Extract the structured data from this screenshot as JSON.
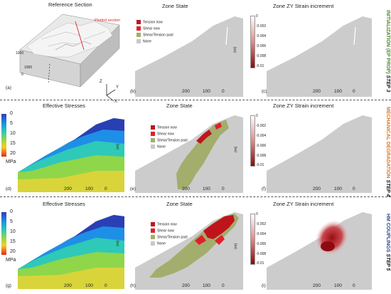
{
  "titles": {
    "reference": "Reference Section",
    "zone_state": "Zone State",
    "zone_strain": "Zone ZY Strain increment",
    "effective": "Effective Stresses"
  },
  "reference_annotation": "Plotted section",
  "panel_labels": [
    "(a)",
    "(b)",
    "(c)",
    "(d)",
    "(e)",
    "(f)",
    "(g)",
    "(h)",
    "(i)"
  ],
  "distance_ticks": [
    "200",
    "100",
    "0"
  ],
  "unit_m": "(m)",
  "ref_ticks": [
    "1000",
    "1000",
    "0"
  ],
  "axes3d": {
    "z": "Z",
    "y": "Y",
    "x": "X"
  },
  "zone_legend": {
    "items": [
      {
        "label": "Tension now",
        "color": "#c0141c"
      },
      {
        "label": "Shear now",
        "color": "#e01f2b"
      },
      {
        "label": "Shear/Tension past",
        "color": "#a3ad6c"
      },
      {
        "label": "None",
        "color": "#c8c8c8"
      }
    ]
  },
  "strain_scale": [
    "0",
    "-0.002",
    "-0.004",
    "-0.006",
    "-0.008",
    "-0.01"
  ],
  "stress_scale": {
    "ticks": [
      "0",
      "5",
      "10",
      "15",
      "20"
    ],
    "unit": "MPa"
  },
  "steps": [
    {
      "step": "STEP 3",
      "name": "INITIALIZATION (EP PROP)",
      "color": "#4e8a2a"
    },
    {
      "step": "STEP 4",
      "name": "MECHANICAL DEGRADATION",
      "color": "#d9782a"
    },
    {
      "step": "STEP 5",
      "name": "HM COUPLINGS",
      "color": "#2b4b8c"
    }
  ]
}
